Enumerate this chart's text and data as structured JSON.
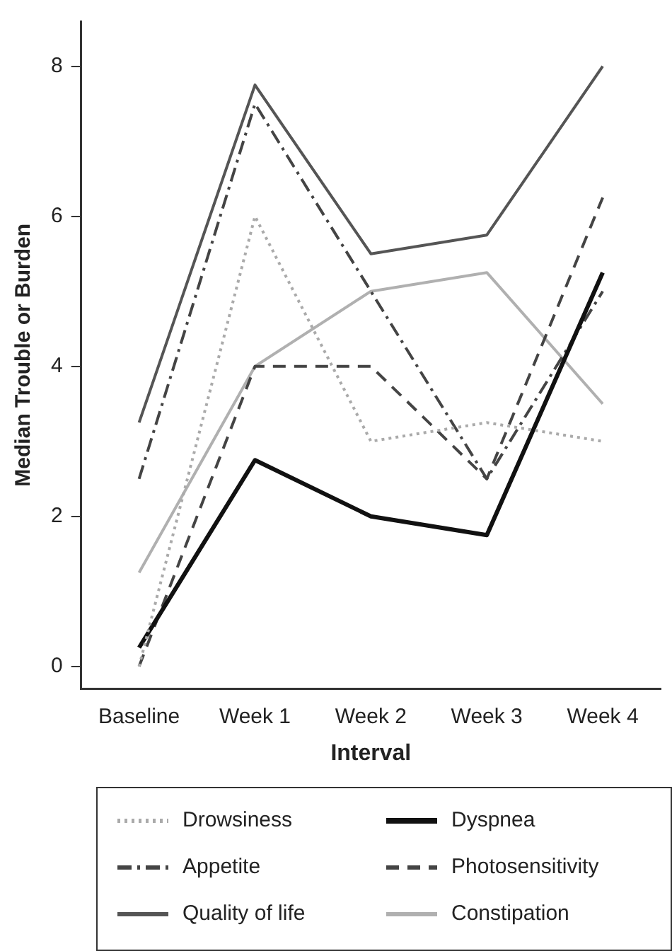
{
  "chart_data": {
    "type": "line",
    "xlabel": "Interval",
    "ylabel": "Median Trouble or Burden",
    "categories": [
      "Baseline",
      "Week 1",
      "Week 2",
      "Week 3",
      "Week 4"
    ],
    "series": [
      {
        "name": "Drowsiness",
        "color": "#aaaaaa",
        "line_style": "dotted",
        "values": [
          0,
          6,
          3,
          3.25,
          3
        ]
      },
      {
        "name": "Dyspnea",
        "color": "#111111",
        "line_style": "solid",
        "values": [
          0.25,
          2.75,
          2,
          1.75,
          5.25
        ]
      },
      {
        "name": "Appetite",
        "color": "#444444",
        "line_style": "dashdot",
        "values": [
          2.5,
          7.5,
          5,
          2.5,
          5
        ]
      },
      {
        "name": "Photosensitivity",
        "color": "#444444",
        "line_style": "dashed",
        "values": [
          0,
          4,
          4,
          2.5,
          6.25
        ]
      },
      {
        "name": "Quality of life",
        "color": "#555555",
        "line_style": "solid",
        "values": [
          3.25,
          7.75,
          5.5,
          5.75,
          8
        ]
      },
      {
        "name": "Constipation",
        "color": "#b0b0b0",
        "line_style": "solid",
        "values": [
          1.25,
          4,
          5,
          5.25,
          3.5
        ]
      }
    ],
    "ylim": [
      -0.3,
      8.6
    ],
    "yticks": [
      0,
      2,
      4,
      6,
      8
    ],
    "grid": false,
    "legend": "bottom",
    "marker": "none"
  }
}
